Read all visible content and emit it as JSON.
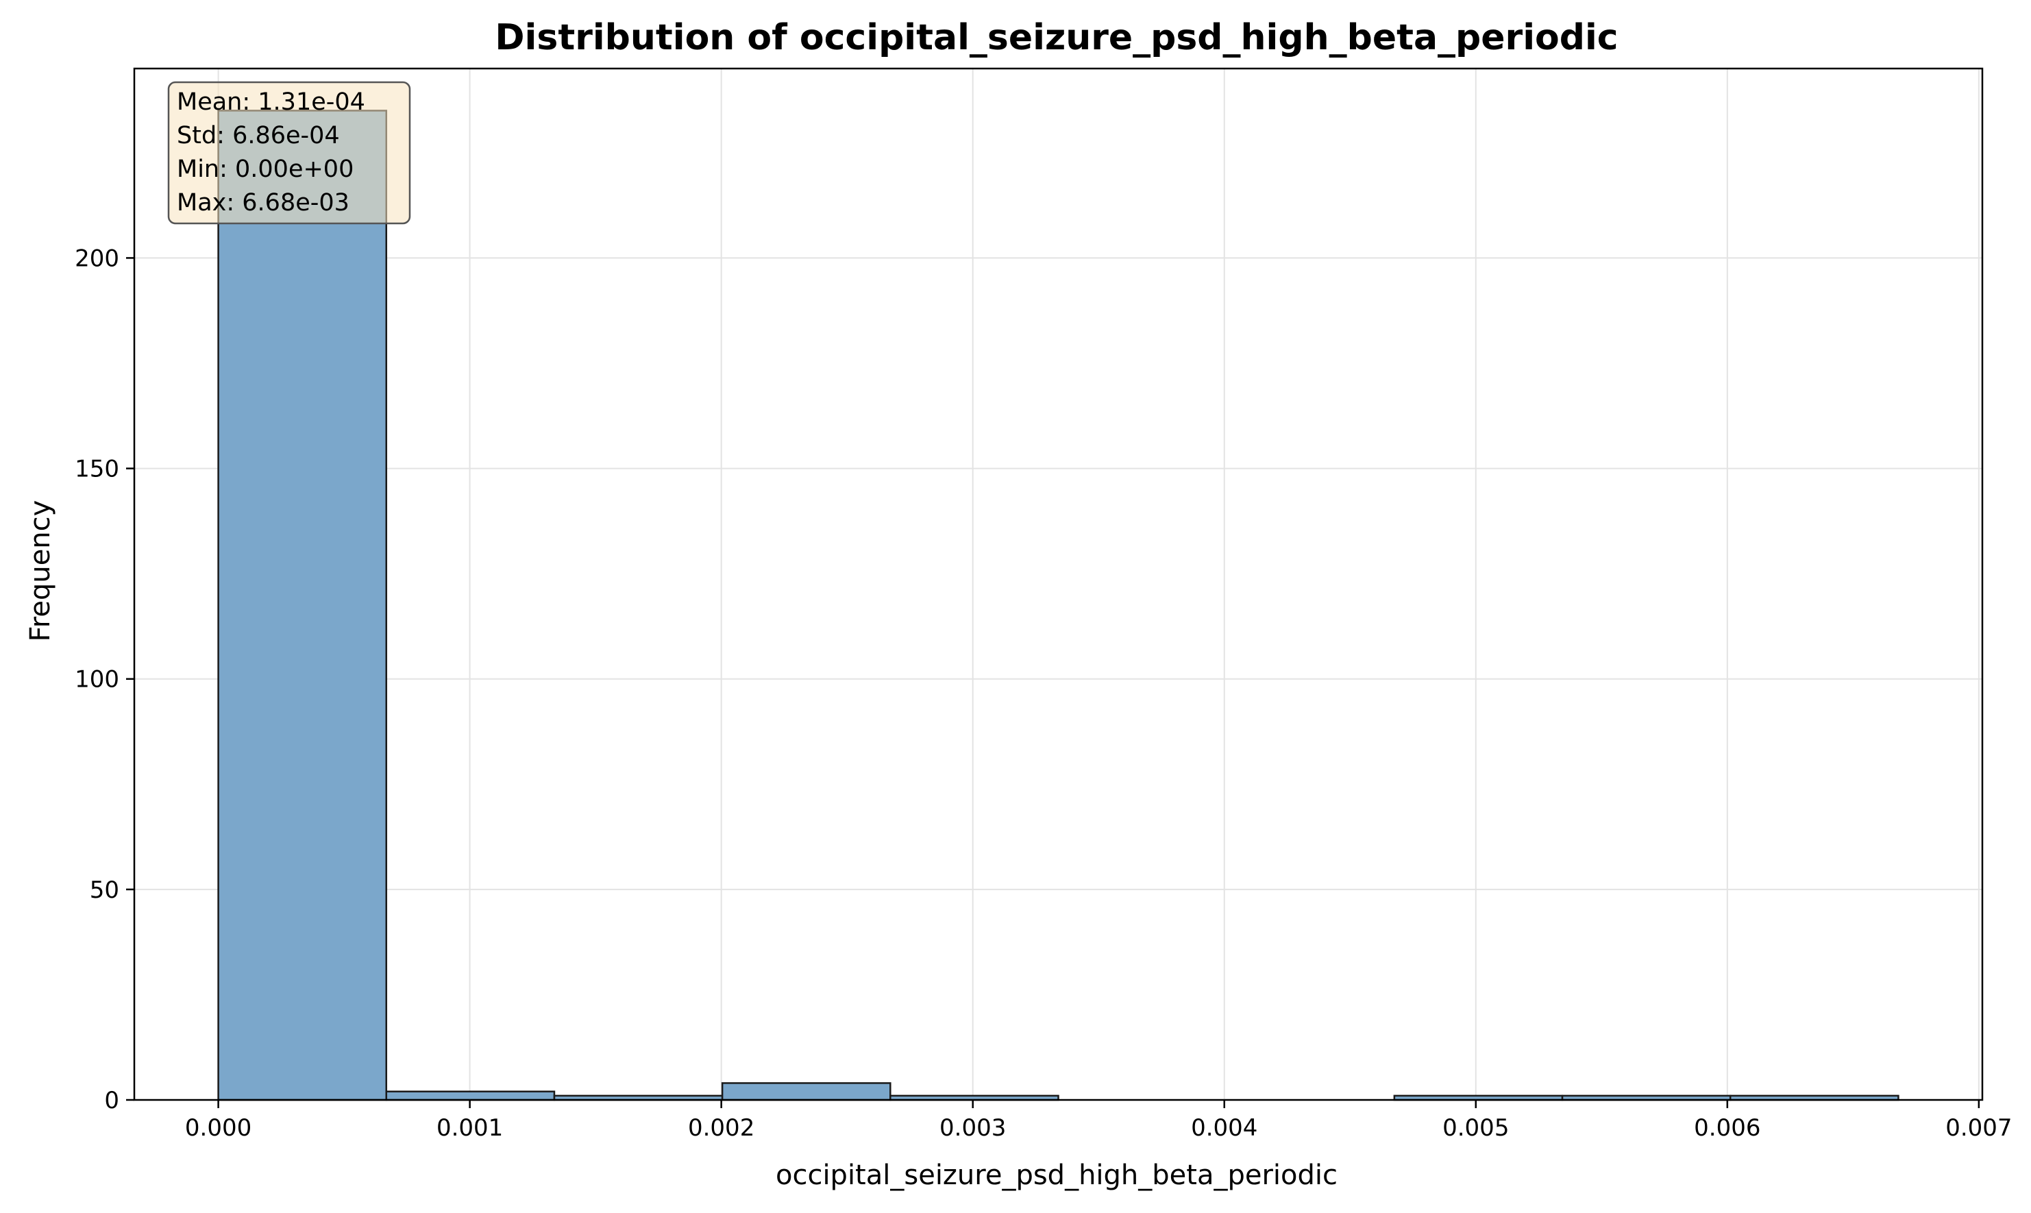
{
  "chart_data": {
    "type": "histogram",
    "title": "Distribution of occipital_seizure_psd_high_beta_periodic",
    "xlabel": "occipital_seizure_psd_high_beta_periodic",
    "ylabel": "Frequency",
    "xlim": [
      -0.000334,
      0.007014
    ],
    "ylim": [
      0,
      245
    ],
    "x_ticks": [
      0.0,
      0.001,
      0.002,
      0.003,
      0.004,
      0.005,
      0.006,
      0.007
    ],
    "x_tick_labels": [
      "0.000",
      "0.001",
      "0.002",
      "0.003",
      "0.004",
      "0.005",
      "0.006",
      "0.007"
    ],
    "y_ticks": [
      0,
      50,
      100,
      150,
      200
    ],
    "y_tick_labels": [
      "0",
      "50",
      "100",
      "150",
      "200"
    ],
    "grid": true,
    "bins": [
      {
        "x0": 0.0,
        "x1": 0.000668,
        "count": 235
      },
      {
        "x0": 0.000668,
        "x1": 0.001336,
        "count": 2
      },
      {
        "x0": 0.001336,
        "x1": 0.002004,
        "count": 1
      },
      {
        "x0": 0.002004,
        "x1": 0.002672,
        "count": 4
      },
      {
        "x0": 0.002672,
        "x1": 0.00334,
        "count": 1
      },
      {
        "x0": 0.00334,
        "x1": 0.004008,
        "count": 0
      },
      {
        "x0": 0.004008,
        "x1": 0.004676,
        "count": 0
      },
      {
        "x0": 0.004676,
        "x1": 0.005344,
        "count": 1
      },
      {
        "x0": 0.005344,
        "x1": 0.006012,
        "count": 1
      },
      {
        "x0": 0.006012,
        "x1": 0.00668,
        "count": 1
      }
    ],
    "stats_box": {
      "position": "top-left",
      "lines": [
        "Mean: 1.31e-04",
        "Std: 6.86e-04",
        "Min: 0.00e+00",
        "Max: 6.68e-03"
      ]
    },
    "colors": {
      "bar_fill": "#7ba7cb",
      "bar_edge": "#1a1a1a",
      "grid": "#e3e3e3",
      "stats_box_fill": "#f7e3c0",
      "stats_box_edge": "#555555"
    }
  }
}
